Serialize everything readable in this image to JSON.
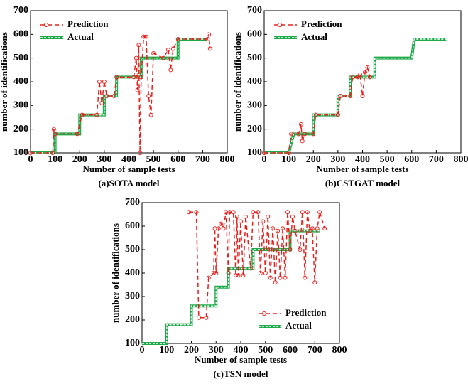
{
  "chart_data": [
    {
      "type": "line",
      "title": "(a)SOTA model",
      "xlabel": "Number of sample tests",
      "ylabel": "number of identifications",
      "xlim": [
        0,
        800
      ],
      "ylim": [
        100,
        700
      ],
      "xticks": [
        0,
        100,
        200,
        300,
        400,
        500,
        600,
        700,
        800
      ],
      "yticks": [
        100,
        200,
        300,
        400,
        500,
        600,
        700
      ],
      "legend": "upper left",
      "series": [
        {
          "name": "Prediction",
          "color": "#e8201c",
          "x": [
            0,
            90,
            95,
            100,
            190,
            210,
            270,
            280,
            290,
            300,
            310,
            340,
            350,
            420,
            430,
            435,
            440,
            445,
            450,
            460,
            470,
            480,
            490,
            500,
            540,
            560,
            570,
            580,
            600,
            720,
            725,
            730
          ],
          "values": [
            100,
            100,
            200,
            180,
            180,
            260,
            260,
            400,
            310,
            400,
            340,
            340,
            420,
            420,
            500,
            365,
            555,
            100,
            420,
            590,
            590,
            340,
            260,
            520,
            500,
            535,
            450,
            540,
            580,
            580,
            600,
            540
          ]
        },
        {
          "name": "Actual",
          "color": "#1faa4a",
          "x": [
            0,
            100,
            100,
            200,
            200,
            300,
            300,
            350,
            350,
            450,
            450,
            600,
            600,
            720
          ],
          "values": [
            100,
            100,
            180,
            180,
            260,
            260,
            340,
            340,
            420,
            420,
            500,
            500,
            580,
            580
          ]
        }
      ]
    },
    {
      "type": "line",
      "title": "(b)CSTGAT model",
      "xlabel": "Number of sample tests",
      "ylabel": "number of identifications",
      "xlim": [
        0,
        800
      ],
      "ylim": [
        100,
        700
      ],
      "xticks": [
        0,
        100,
        200,
        300,
        400,
        500,
        600,
        700,
        800
      ],
      "yticks": [
        100,
        200,
        300,
        400,
        500,
        600,
        700
      ],
      "legend": "upper left",
      "series": [
        {
          "name": "Prediction",
          "color": "#e8201c",
          "x": [
            0,
            100,
            110,
            140,
            150,
            155,
            165,
            200,
            210,
            300,
            310,
            350,
            360,
            380,
            390,
            400,
            410,
            420,
            430
          ],
          "values": [
            100,
            100,
            180,
            180,
            220,
            150,
            180,
            180,
            260,
            260,
            340,
            340,
            420,
            420,
            430,
            340,
            440,
            460,
            420
          ]
        },
        {
          "name": "Actual",
          "color": "#1faa4a",
          "x": [
            0,
            100,
            120,
            200,
            200,
            300,
            300,
            350,
            350,
            450,
            450,
            600,
            610,
            740
          ],
          "values": [
            100,
            100,
            180,
            180,
            260,
            260,
            340,
            340,
            420,
            420,
            500,
            500,
            580,
            580
          ]
        }
      ]
    },
    {
      "type": "line",
      "title": "(c)TSN model",
      "xlabel": "Number of sample tests",
      "ylabel": "number of identifications",
      "xlim": [
        0,
        800
      ],
      "ylim": [
        100,
        700
      ],
      "xticks": [
        0,
        100,
        200,
        300,
        400,
        500,
        600,
        700,
        800
      ],
      "yticks": [
        100,
        200,
        300,
        400,
        500,
        600,
        700
      ],
      "legend": "lower right",
      "series": [
        {
          "name": "Prediction",
          "color": "#e8201c",
          "x": [
            190,
            220,
            230,
            260,
            270,
            290,
            295,
            300,
            310,
            320,
            330,
            340,
            350,
            355,
            370,
            380,
            385,
            390,
            400,
            410,
            420,
            440,
            450,
            470,
            480,
            490,
            500,
            510,
            520,
            530,
            540,
            550,
            560,
            570,
            580,
            590,
            600,
            610,
            620,
            640,
            650,
            660,
            670,
            680,
            690,
            700,
            710,
            720,
            740
          ],
          "values": [
            660,
            660,
            210,
            210,
            380,
            400,
            590,
            400,
            590,
            610,
            590,
            660,
            400,
            660,
            660,
            390,
            640,
            390,
            620,
            390,
            640,
            420,
            660,
            660,
            400,
            620,
            400,
            640,
            380,
            590,
            360,
            580,
            380,
            590,
            380,
            660,
            500,
            640,
            580,
            500,
            660,
            380,
            660,
            580,
            590,
            360,
            590,
            660,
            590
          ]
        },
        {
          "name": "Actual",
          "color": "#1faa4a",
          "x": [
            0,
            100,
            100,
            200,
            200,
            300,
            300,
            350,
            350,
            450,
            450,
            600,
            600,
            720
          ],
          "values": [
            100,
            100,
            180,
            180,
            260,
            260,
            340,
            340,
            420,
            420,
            500,
            500,
            580,
            580
          ]
        }
      ]
    }
  ]
}
